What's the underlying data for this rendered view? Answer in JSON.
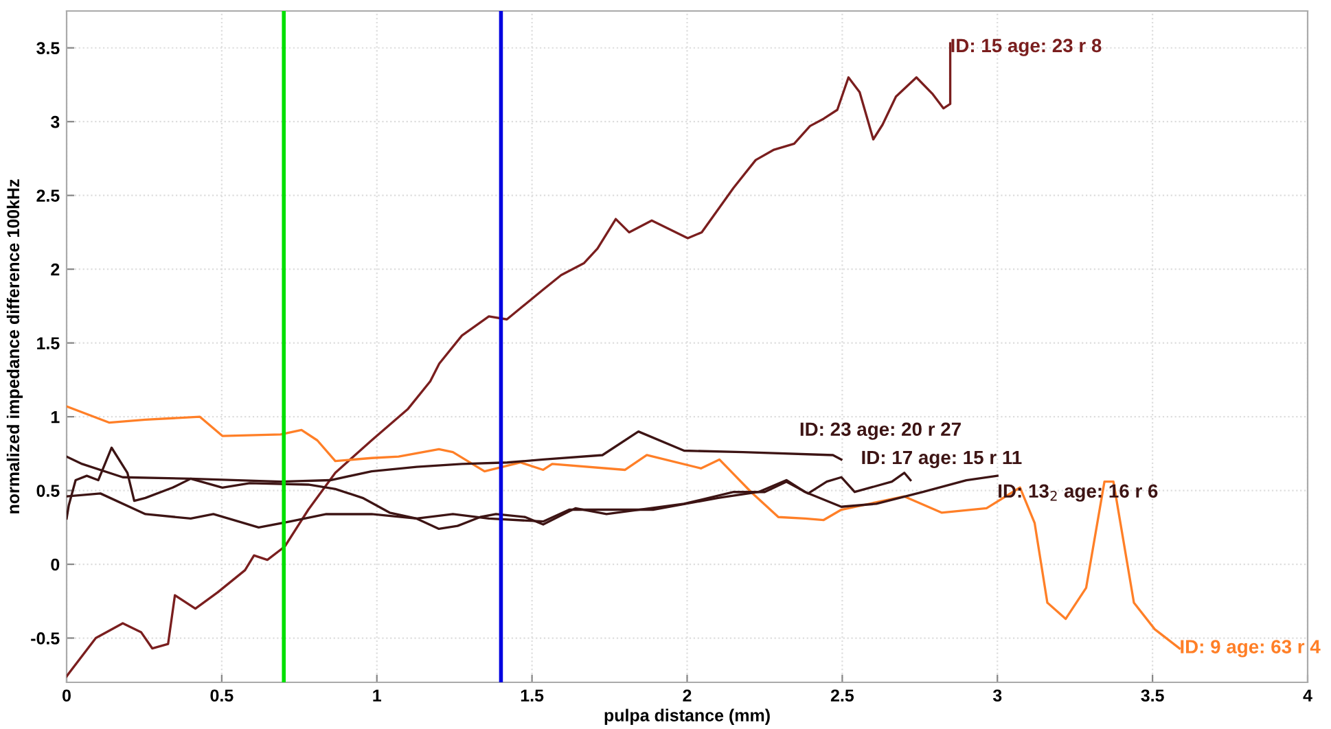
{
  "chart_data": {
    "type": "line",
    "xlabel": "pulpa distance (mm)",
    "ylabel": "normalized impedance difference 100kHz",
    "xlim": [
      0,
      4
    ],
    "xticks": [
      0,
      0.5,
      1,
      1.5,
      2,
      2.5,
      3,
      3.5,
      4
    ],
    "ylim": [
      -0.8,
      3.75
    ],
    "yticks": [
      -0.5,
      0,
      0.5,
      1,
      1.5,
      2,
      2.5,
      3,
      3.5
    ],
    "grid": true,
    "legend": false,
    "marker": "none",
    "line_style": "solid",
    "ref_lines": [
      {
        "axis": "x",
        "value": 0.7,
        "color": "#00e000"
      },
      {
        "axis": "x",
        "value": 1.4,
        "color": "#0000e0"
      }
    ],
    "series": [
      {
        "color": "#7a1e1e",
        "x": [
          0.0,
          0.007,
          0.094,
          0.181,
          0.24,
          0.276,
          0.327,
          0.349,
          0.415,
          0.487,
          0.575,
          0.604,
          0.647,
          0.703,
          0.779,
          0.866,
          0.983,
          1.099,
          1.172,
          1.201,
          1.274,
          1.361,
          1.419,
          1.535,
          1.594,
          1.667,
          1.711,
          1.77,
          1.813,
          1.886,
          2.002,
          2.047,
          2.149,
          2.221,
          2.28,
          2.345,
          2.396,
          2.44,
          2.484,
          2.52,
          2.556,
          2.6,
          2.63,
          2.673,
          2.739,
          2.79,
          2.826,
          2.848,
          2.848
        ],
        "name": "ID: 15 age: 23 r 8",
        "values": [
          -0.76,
          -0.74,
          -0.5,
          -0.4,
          -0.46,
          -0.57,
          -0.54,
          -0.21,
          -0.3,
          -0.19,
          -0.04,
          0.06,
          0.03,
          0.12,
          0.37,
          0.62,
          0.84,
          1.05,
          1.24,
          1.36,
          1.55,
          1.68,
          1.66,
          1.86,
          1.96,
          2.04,
          2.14,
          2.34,
          2.25,
          2.33,
          2.21,
          2.25,
          2.55,
          2.74,
          2.81,
          2.85,
          2.97,
          3.02,
          3.08,
          3.3,
          3.2,
          2.88,
          2.98,
          3.17,
          3.3,
          3.19,
          3.09,
          3.12,
          3.53
        ]
      },
      {
        "color": "#ff7f27",
        "x": [
          0.0,
          0.138,
          0.254,
          0.429,
          0.502,
          0.69,
          0.757,
          0.808,
          0.866,
          0.983,
          1.07,
          1.2,
          1.245,
          1.347,
          1.463,
          1.536,
          1.565,
          1.8,
          1.87,
          2.045,
          2.104,
          2.206,
          2.294,
          2.38,
          2.44,
          2.497,
          2.7,
          2.82,
          2.965,
          3.073,
          3.12,
          3.161,
          3.22,
          3.286,
          3.345,
          3.374,
          3.44,
          3.507,
          3.587
        ],
        "values": [
          1.07,
          0.96,
          0.98,
          1.0,
          0.87,
          0.88,
          0.91,
          0.84,
          0.7,
          0.72,
          0.73,
          0.78,
          0.76,
          0.63,
          0.69,
          0.64,
          0.68,
          0.64,
          0.74,
          0.65,
          0.71,
          0.49,
          0.32,
          0.31,
          0.3,
          0.37,
          0.46,
          0.35,
          0.38,
          0.52,
          0.28,
          -0.26,
          -0.37,
          -0.16,
          0.56,
          0.56,
          -0.26,
          -0.44,
          -0.57
        ],
        "name": "ID: 9 age: 63 r 4"
      },
      {
        "color": "#3d1414",
        "x": [
          0.0,
          0.05,
          0.181,
          0.4,
          0.69,
          0.85,
          0.983,
          1.128,
          1.274,
          1.42,
          1.536,
          1.727,
          1.843,
          1.99,
          2.18,
          2.47,
          2.497
        ],
        "values": [
          0.73,
          0.68,
          0.59,
          0.58,
          0.56,
          0.57,
          0.63,
          0.66,
          0.68,
          0.69,
          0.71,
          0.74,
          0.9,
          0.77,
          0.76,
          0.74,
          0.71
        ],
        "name": "ID: 23 age: 20 r 27"
      },
      {
        "color": "#3d1414",
        "x": [
          0.0,
          0.007,
          0.029,
          0.065,
          0.102,
          0.145,
          0.196,
          0.218,
          0.254,
          0.342,
          0.4,
          0.502,
          0.59,
          0.779,
          0.866,
          0.954,
          1.041,
          1.128,
          1.2,
          1.26,
          1.333,
          1.384,
          1.478,
          1.536,
          1.64,
          1.74,
          1.99,
          2.15,
          2.25,
          2.32,
          2.39,
          2.45,
          2.497,
          2.54,
          2.66,
          2.7,
          2.72
        ],
        "values": [
          0.31,
          0.4,
          0.57,
          0.6,
          0.57,
          0.79,
          0.62,
          0.43,
          0.45,
          0.52,
          0.58,
          0.52,
          0.55,
          0.54,
          0.51,
          0.45,
          0.35,
          0.31,
          0.24,
          0.26,
          0.32,
          0.34,
          0.32,
          0.27,
          0.38,
          0.34,
          0.41,
          0.49,
          0.49,
          0.56,
          0.48,
          0.56,
          0.59,
          0.49,
          0.56,
          0.62,
          0.57
        ],
        "name": "ID: 17 age: 15 r 11"
      },
      {
        "color": "#3d1414",
        "x": [
          0.0,
          0.109,
          0.254,
          0.4,
          0.473,
          0.619,
          0.721,
          0.837,
          0.983,
          1.128,
          1.245,
          1.361,
          1.536,
          1.62,
          1.89,
          2.1,
          2.23,
          2.32,
          2.38,
          2.497,
          2.61,
          2.76,
          2.9,
          3.0
        ],
        "values": [
          0.46,
          0.48,
          0.34,
          0.31,
          0.34,
          0.25,
          0.29,
          0.34,
          0.34,
          0.31,
          0.34,
          0.31,
          0.29,
          0.37,
          0.37,
          0.45,
          0.49,
          0.57,
          0.49,
          0.39,
          0.41,
          0.49,
          0.57,
          0.6
        ],
        "name": "ID: 13$_{2}$ age: 16 r 6"
      }
    ]
  }
}
